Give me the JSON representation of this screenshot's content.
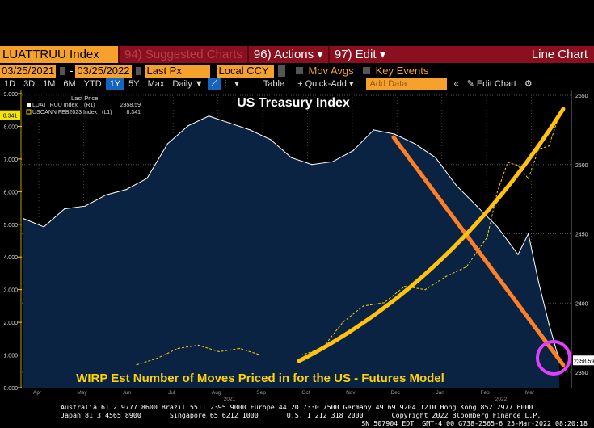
{
  "header": {
    "ticker": "LUATTRUU Index",
    "suggested": "94) Suggested Charts",
    "actions": "96) Actions ▾",
    "edit": "97) Edit ▾",
    "chart_type": "Line Chart"
  },
  "controls": {
    "start_date": "03/25/2021",
    "dash": "-",
    "end_date": "03/25/2022",
    "field": "Last Px",
    "currency": "Local CCY",
    "mov_avgs": "Mov Avgs",
    "key_events": "Key Events"
  },
  "toolbar": {
    "ranges": [
      "1D",
      "3D",
      "1M",
      "6M",
      "YTD",
      "1Y",
      "5Y",
      "Max"
    ],
    "selected_range": "1Y",
    "period": "Daily ▼",
    "table": "Table",
    "quick_add": "+ Quick-Add ▾",
    "add_data_placeholder": "Add Data",
    "collapse": "«",
    "edit_chart": "✎ Edit Chart",
    "settings": "⚙"
  },
  "legend": {
    "title": "Last Price",
    "items": [
      {
        "name": "LUATTRUU Index",
        "axis": "(R1)",
        "value": "2358.59",
        "color": "#ffffff"
      },
      {
        "name": "USOANN FEB2023 Index",
        "axis": "(L1)",
        "value": "8.341",
        "color": "#f5d000"
      }
    ]
  },
  "annotations": {
    "title": "US Treasury Index",
    "subtitle": "WIRP Est Number of Moves Priced in for the US - Futures Model",
    "orange": "#ff7f27",
    "yellow": "#ffc20e",
    "magenta": "#e040fb"
  },
  "chart_data": {
    "type": "line",
    "x_range": [
      "2021-03-25",
      "2022-03-25"
    ],
    "x_ticks": [
      "Apr",
      "May",
      "Jun",
      "Jul",
      "Aug",
      "Sep",
      "Oct",
      "Nov",
      "Dec",
      "Jan",
      "Feb",
      "Mar"
    ],
    "x_year_labels": [
      "2021",
      "2022"
    ],
    "left_axis": {
      "ylim": [
        0,
        9
      ],
      "ticks": [
        "0.000",
        "1.000",
        "2.000",
        "3.000",
        "4.000",
        "5.000",
        "6.000",
        "7.000",
        "8.000",
        "9.000"
      ],
      "last": "8.341"
    },
    "right_axis": {
      "ylim": [
        2340,
        2560
      ],
      "ticks": [
        "2350",
        "2400",
        "2450",
        "2500",
        "2550"
      ],
      "last": "2358.59"
    },
    "grid": true,
    "series": [
      {
        "name": "LUATTRUU Index",
        "axis": "right",
        "style": "area-white",
        "x": [
          "2021-03-26",
          "2021-04-09",
          "2021-04-23",
          "2021-05-07",
          "2021-05-21",
          "2021-06-04",
          "2021-06-18",
          "2021-07-02",
          "2021-07-16",
          "2021-07-30",
          "2021-08-13",
          "2021-08-27",
          "2021-09-10",
          "2021-09-24",
          "2021-10-08",
          "2021-10-22",
          "2021-11-05",
          "2021-11-19",
          "2021-12-03",
          "2021-12-17",
          "2021-12-31",
          "2022-01-14",
          "2022-01-28",
          "2022-02-11",
          "2022-02-25",
          "2022-03-04",
          "2022-03-11",
          "2022-03-18",
          "2022-03-25"
        ],
        "y": [
          2461,
          2455,
          2468,
          2470,
          2478,
          2482,
          2490,
          2515,
          2528,
          2535,
          2530,
          2525,
          2518,
          2505,
          2500,
          2502,
          2510,
          2525,
          2522,
          2515,
          2505,
          2485,
          2470,
          2455,
          2435,
          2450,
          2415,
          2385,
          2358.59
        ]
      },
      {
        "name": "USOANN FEB2023 Index",
        "axis": "left",
        "style": "dashed-yellow",
        "x": [
          "2021-06-11",
          "2021-06-25",
          "2021-07-09",
          "2021-07-23",
          "2021-08-06",
          "2021-08-20",
          "2021-09-03",
          "2021-09-17",
          "2021-10-01",
          "2021-10-15",
          "2021-10-29",
          "2021-11-12",
          "2021-11-26",
          "2021-12-10",
          "2021-12-24",
          "2022-01-07",
          "2022-01-21",
          "2022-02-04",
          "2022-02-11",
          "2022-02-18",
          "2022-02-25",
          "2022-03-04",
          "2022-03-11",
          "2022-03-18",
          "2022-03-25"
        ],
        "y": [
          0.7,
          0.9,
          1.2,
          1.3,
          1.1,
          1.2,
          1.0,
          1.0,
          1.0,
          1.2,
          2.0,
          2.5,
          2.6,
          3.1,
          3.0,
          3.4,
          3.7,
          4.6,
          6.0,
          6.9,
          6.8,
          6.4,
          7.3,
          7.4,
          8.341
        ]
      }
    ]
  },
  "footer": {
    "line1": "Australia 61 2 9777 8600 Brazil 5511 2395 9000 Europe 44 20 7330 7500 Germany 49 69 9204 1210 Hong Kong 852 2977 6000",
    "line2": "Japan 81 3 4565 8900       Singapore 65 6212 1000       U.S. 1 212 318 2000       Copyright 2022 Bloomberg Finance L.P.",
    "line3": "SN 507904 EDT  GMT-4:00 G738-2565-6 25-Mar-2022 08:20:18"
  }
}
